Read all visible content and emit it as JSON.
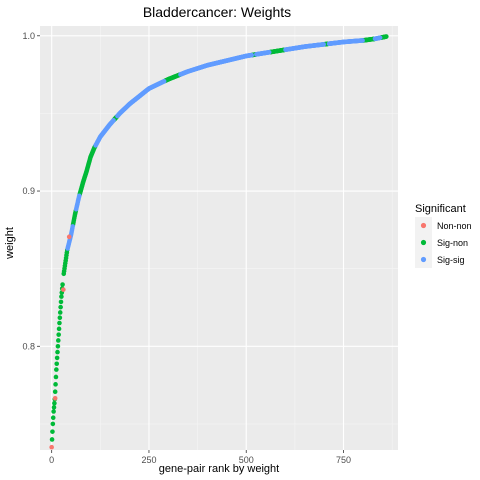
{
  "chart_data": {
    "type": "scatter",
    "title": "Bladdercancer: Weights",
    "xlabel": "gene-pair rank by weight",
    "ylabel": "weight",
    "xlim": [
      -30,
      890
    ],
    "ylim": [
      0.7332,
      1.0063
    ],
    "x_ticks": [
      0,
      250,
      500,
      750
    ],
    "x_tick_labels": [
      "0",
      "250",
      "500",
      "750"
    ],
    "y_ticks": [
      0.8,
      0.9,
      1.0
    ],
    "y_tick_labels": [
      "0.8",
      "0.9",
      "1.0"
    ],
    "grid": true,
    "legend": {
      "title": "Significant",
      "placement": "right",
      "entries": [
        {
          "label": "Non-non",
          "color": "#F8766D"
        },
        {
          "label": "Sig-non",
          "color": "#00BA38"
        },
        {
          "label": "Sig-sig",
          "color": "#619CFF"
        }
      ]
    },
    "curve_knots": [
      [
        0,
        0.735
      ],
      [
        3,
        0.75
      ],
      [
        5,
        0.758
      ],
      [
        8,
        0.766
      ],
      [
        12,
        0.785
      ],
      [
        16,
        0.8
      ],
      [
        20,
        0.815
      ],
      [
        25,
        0.832
      ],
      [
        30,
        0.845
      ],
      [
        40,
        0.862
      ],
      [
        50,
        0.872
      ],
      [
        60,
        0.885
      ],
      [
        70,
        0.896
      ],
      [
        80,
        0.905
      ],
      [
        90,
        0.913
      ],
      [
        100,
        0.922
      ],
      [
        110,
        0.928
      ],
      [
        125,
        0.935
      ],
      [
        150,
        0.943
      ],
      [
        175,
        0.95
      ],
      [
        200,
        0.956
      ],
      [
        225,
        0.961
      ],
      [
        250,
        0.966
      ],
      [
        300,
        0.972
      ],
      [
        350,
        0.977
      ],
      [
        400,
        0.981
      ],
      [
        450,
        0.984
      ],
      [
        500,
        0.987
      ],
      [
        550,
        0.989
      ],
      [
        600,
        0.991
      ],
      [
        650,
        0.993
      ],
      [
        700,
        0.9945
      ],
      [
        750,
        0.996
      ],
      [
        800,
        0.997
      ],
      [
        830,
        0.998
      ],
      [
        860,
        0.9995
      ]
    ],
    "series": [
      {
        "name": "Non-non",
        "color": "#F8766D",
        "points": [
          [
            0,
            0.735
          ],
          [
            9,
            0.7665
          ],
          [
            30,
            0.8365
          ],
          [
            45,
            0.8705
          ]
        ]
      },
      {
        "name": "Sig-non",
        "color": "#00BA38",
        "ranges": [
          [
            1,
            28
          ],
          [
            31,
            40
          ],
          [
            55,
            62
          ],
          [
            72,
            112
          ],
          [
            160,
            168
          ],
          [
            290,
            330
          ],
          [
            515,
            525
          ],
          [
            560,
            600
          ],
          [
            700,
            712
          ],
          [
            800,
            830
          ],
          [
            845,
            860
          ]
        ]
      },
      {
        "name": "Sig-sig",
        "color": "#619CFF",
        "ranges": [
          [
            41,
            54
          ],
          [
            63,
            71
          ],
          [
            113,
            159
          ],
          [
            169,
            289
          ],
          [
            331,
            514
          ],
          [
            526,
            559
          ],
          [
            601,
            699
          ],
          [
            713,
            799
          ],
          [
            831,
            844
          ]
        ]
      }
    ]
  }
}
